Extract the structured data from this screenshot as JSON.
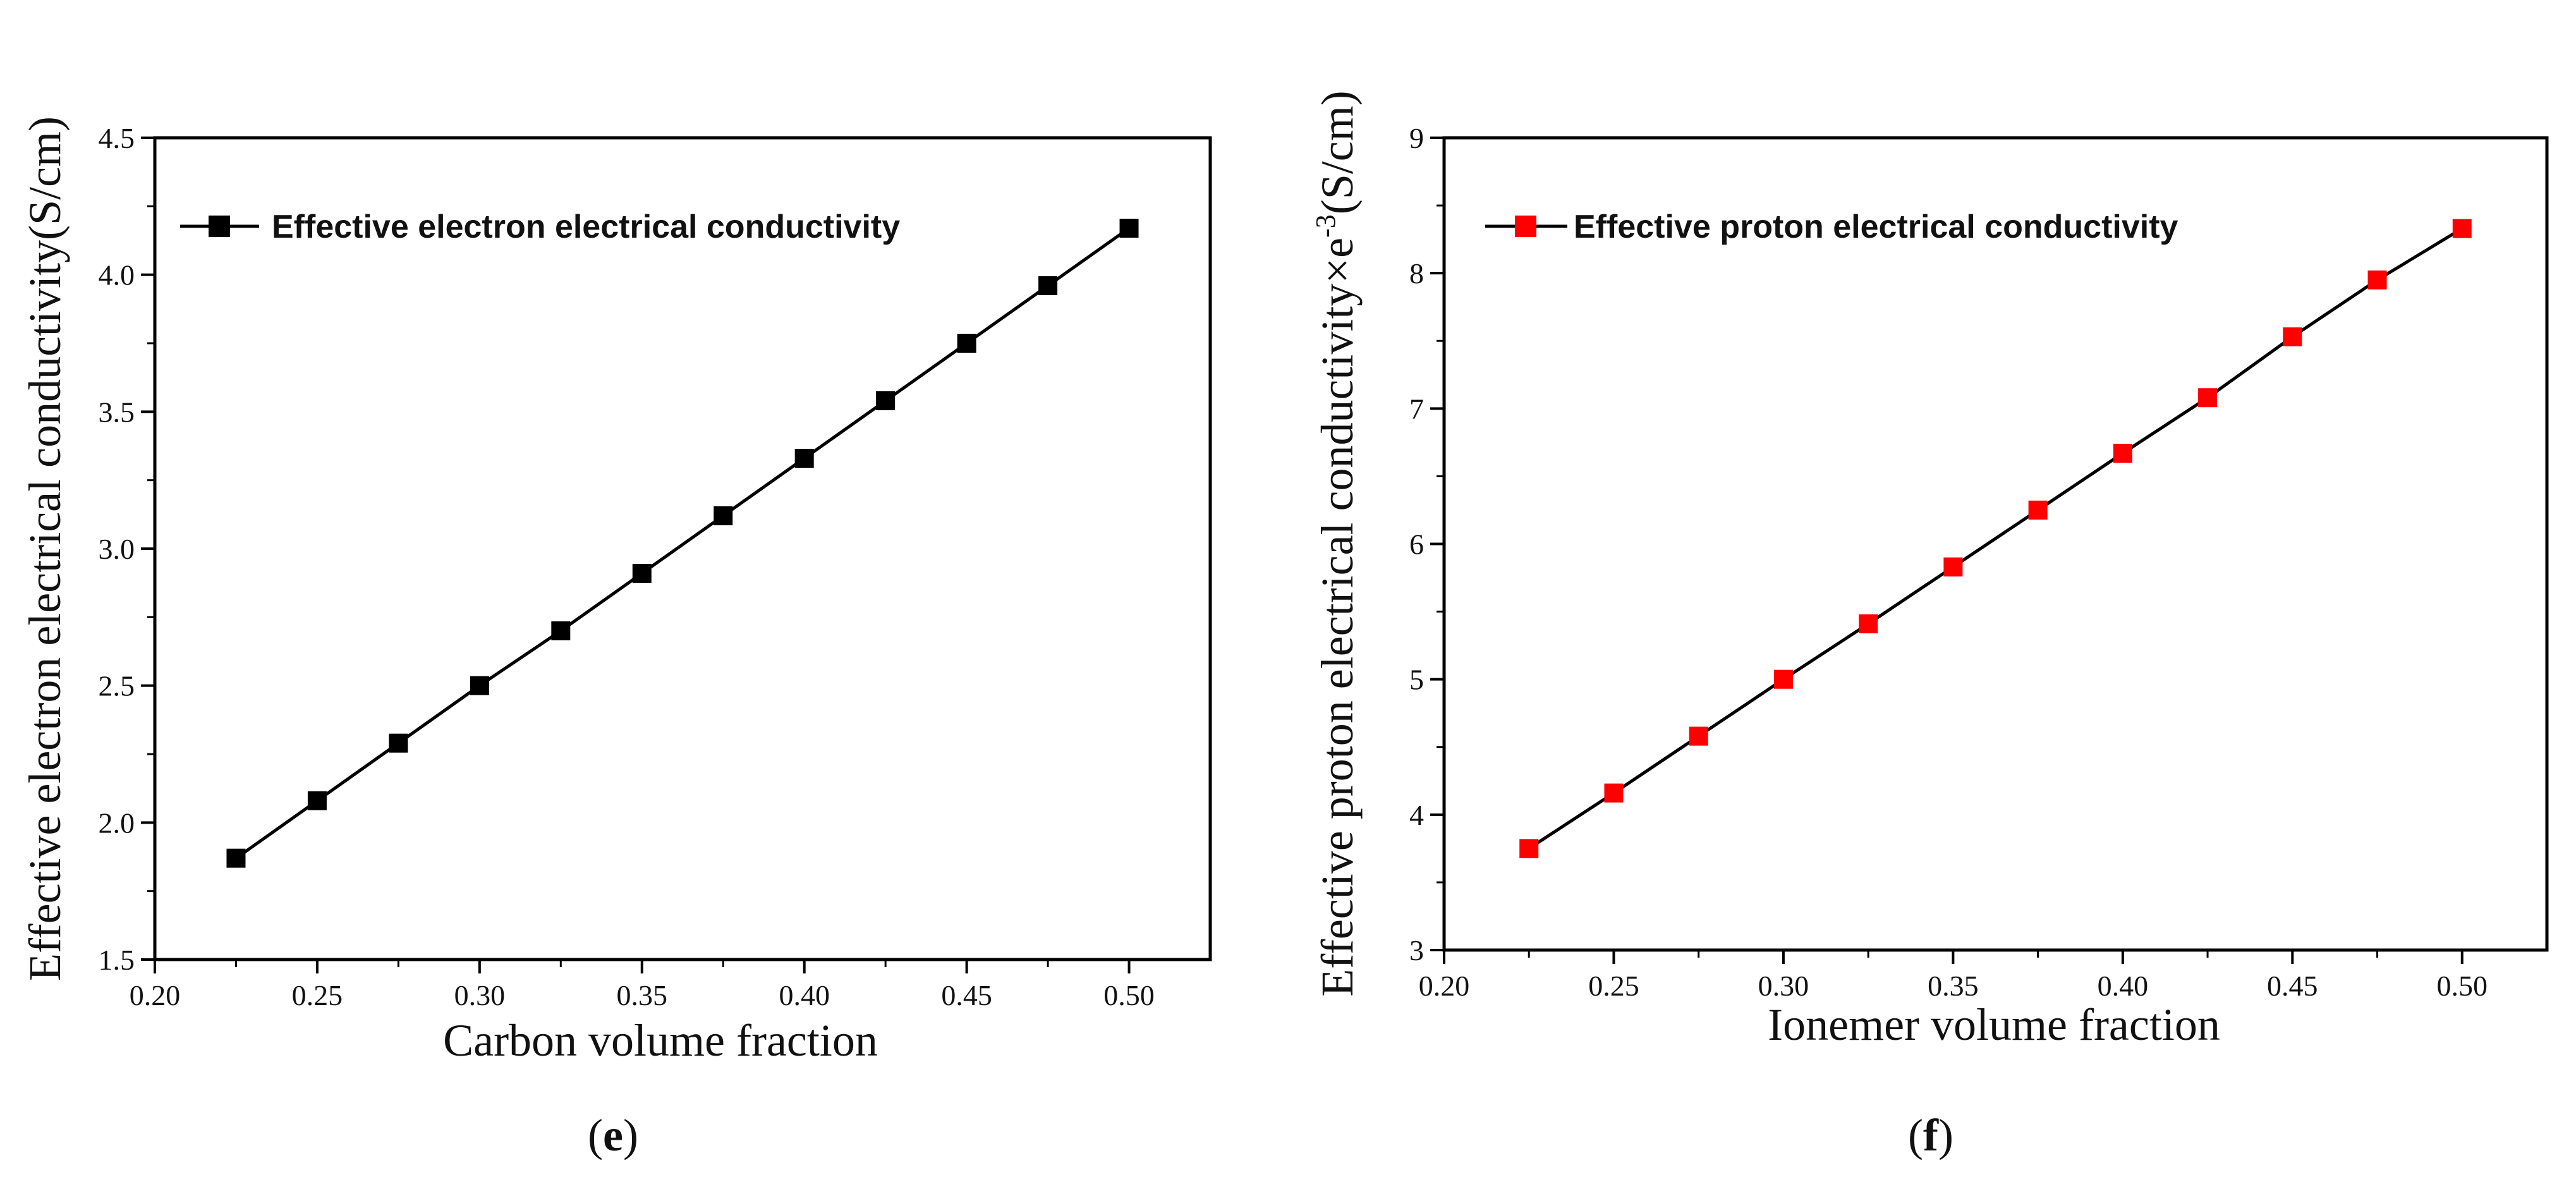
{
  "chart_data": [
    {
      "type": "line",
      "panel_label": {
        "open": "(",
        "letter": "e",
        "close": ")"
      },
      "title": "",
      "xlabel": "Carbon volume fraction",
      "ylabel": "Effective electron electrical conductivity(S/cm)",
      "ylabel_sup": "",
      "ylabel_tail": "",
      "xlim": [
        0.2,
        0.525
      ],
      "ylim": [
        1.5,
        4.5
      ],
      "xticks": [
        "0.20",
        "0.25",
        "0.30",
        "0.35",
        "0.40",
        "0.45",
        "0.50"
      ],
      "xtick_values": [
        0.2,
        0.25,
        0.3,
        0.35,
        0.4,
        0.45,
        0.5
      ],
      "yticks": [
        "1.5",
        "2.0",
        "2.5",
        "3.0",
        "3.5",
        "4.0",
        "4.5"
      ],
      "ytick_values": [
        1.5,
        2.0,
        2.5,
        3.0,
        3.5,
        4.0,
        4.5
      ],
      "grid": false,
      "legend_position": "top-left",
      "series": [
        {
          "name": "Effective electron electrical conductivity",
          "line_color": "#000000",
          "marker_color": "#000000",
          "marker": "square",
          "x": [
            0.225,
            0.25,
            0.275,
            0.3,
            0.325,
            0.35,
            0.375,
            0.4,
            0.425,
            0.45,
            0.475,
            0.5
          ],
          "y": [
            1.87,
            2.08,
            2.29,
            2.5,
            2.7,
            2.91,
            3.12,
            3.33,
            3.54,
            3.75,
            3.96,
            4.17
          ]
        }
      ]
    },
    {
      "type": "line",
      "panel_label": {
        "open": "(",
        "letter": "f",
        "close": ")"
      },
      "title": "",
      "xlabel": "Ionemer volume fraction",
      "ylabel": "Effective proton electrical conductivity×e",
      "ylabel_sup": "-3",
      "ylabel_tail": "(S/cm)",
      "xlim": [
        0.2,
        0.525
      ],
      "ylim": [
        3,
        9
      ],
      "xticks": [
        "0.20",
        "0.25",
        "0.30",
        "0.35",
        "0.40",
        "0.45",
        "0.50"
      ],
      "xtick_values": [
        0.2,
        0.25,
        0.3,
        0.35,
        0.4,
        0.45,
        0.5
      ],
      "yticks": [
        "3",
        "4",
        "5",
        "6",
        "7",
        "8",
        "9"
      ],
      "ytick_values": [
        3,
        4,
        5,
        6,
        7,
        8,
        9
      ],
      "grid": false,
      "legend_position": "top-left",
      "series": [
        {
          "name": "Effective proton electrical conductivity",
          "line_color": "#000000",
          "marker_color": "#ff0000",
          "marker": "square",
          "x": [
            0.225,
            0.25,
            0.275,
            0.3,
            0.325,
            0.35,
            0.375,
            0.4,
            0.425,
            0.45,
            0.475,
            0.5
          ],
          "y": [
            3.75,
            4.16,
            4.58,
            5.0,
            5.41,
            5.83,
            6.25,
            6.67,
            7.08,
            7.53,
            7.95,
            8.33
          ]
        }
      ]
    }
  ]
}
